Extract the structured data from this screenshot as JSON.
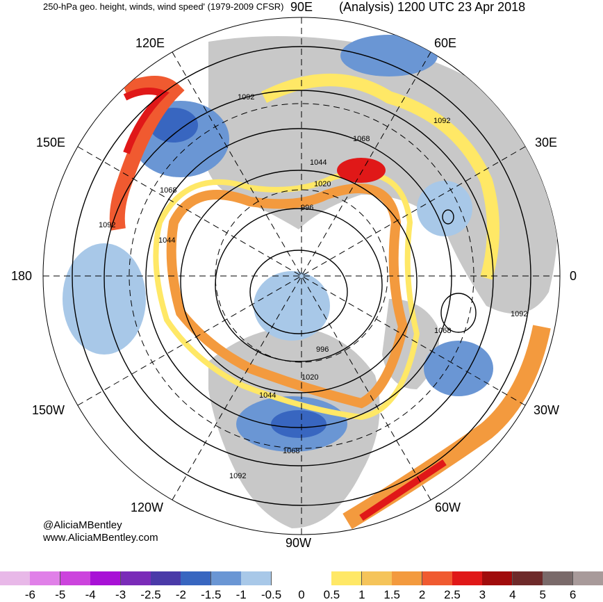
{
  "header": {
    "title_left": "250-hPa geo. height, winds, wind speed' (1979-2009 CFSR)",
    "title_right": "(Analysis) 1200 UTC 23 Apr 2018"
  },
  "longitude_labels": {
    "lon_90e": "90E",
    "lon_120e": "120E",
    "lon_60e": "60E",
    "lon_150e": "150E",
    "lon_30e": "30E",
    "lon_180": "180",
    "lon_0": "0",
    "lon_150w": "150W",
    "lon_30w": "30W",
    "lon_120w": "120W",
    "lon_60w": "60W",
    "lon_90w": "90W"
  },
  "height_contour_labels": [
    "1092",
    "1068",
    "1044",
    "1020",
    "996",
    "1092",
    "1068",
    "1044",
    "1020",
    "996",
    "1092",
    "1068",
    "1092",
    "1044",
    "1068",
    "1092"
  ],
  "credits": {
    "twitter": "@AliciaMBentley",
    "website": "www.AliciaMBentley.com"
  },
  "colorbar": {
    "labels": [
      "-6",
      "-5",
      "-4",
      "-3",
      "-2.5",
      "-2",
      "-1.5",
      "-1",
      "-0.5",
      "0",
      "0.5",
      "1",
      "1.5",
      "2",
      "2.5",
      "3",
      "4",
      "5",
      "6"
    ],
    "colors": [
      "#e8b8e8",
      "#e080e8",
      "#cc44dd",
      "#a811d6",
      "#7a2bb8",
      "#4a3aa8",
      "#3866c0",
      "#6a96d4",
      "#a8c8e8",
      "#ffffff",
      "#ffffff",
      "#ffe866",
      "#f5c45a",
      "#f39a3e",
      "#f05a30",
      "#e01818",
      "#a00c0c",
      "#6e2a2a",
      "#7a6a6a",
      "#a89a9a"
    ]
  },
  "palette": {
    "land": "#c8c8c8",
    "ocean": "#ffffff",
    "contour": "#000000"
  }
}
